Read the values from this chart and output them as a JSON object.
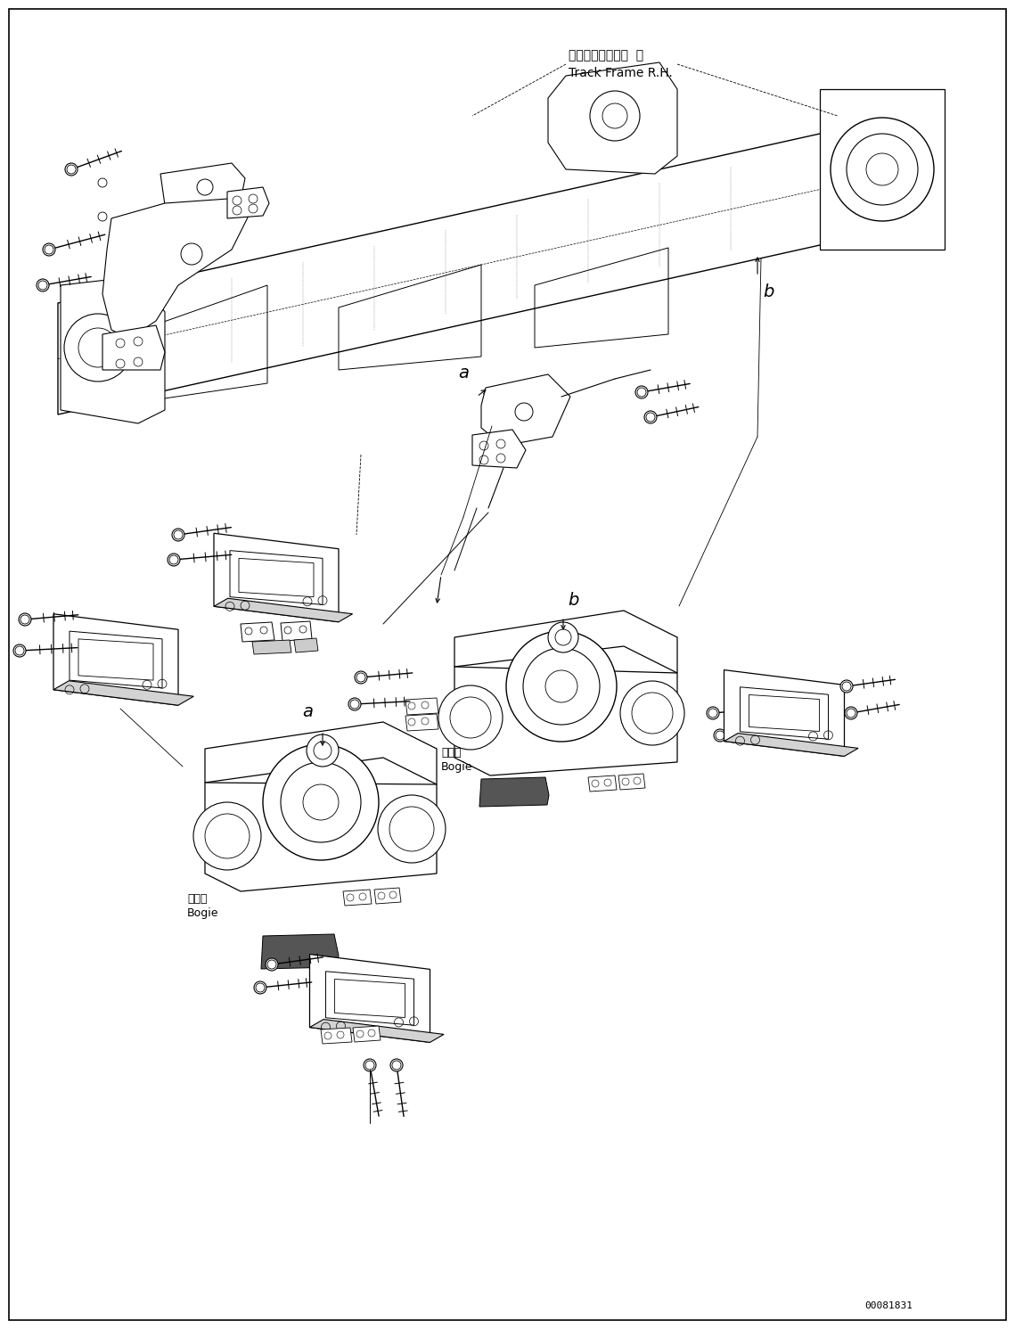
{
  "figure_width": 11.39,
  "figure_height": 14.91,
  "dpi": 100,
  "background_color": "#ffffff",
  "border_color": "#000000",
  "line_color": "#000000",
  "text_color": "#000000",
  "part_number": "00081831",
  "labels": {
    "track_frame_jp": "トラックフレーム  右",
    "track_frame_en": "Track Frame R.H.",
    "bogie_jp": "ボギー",
    "bogie_en": "Bogie"
  }
}
